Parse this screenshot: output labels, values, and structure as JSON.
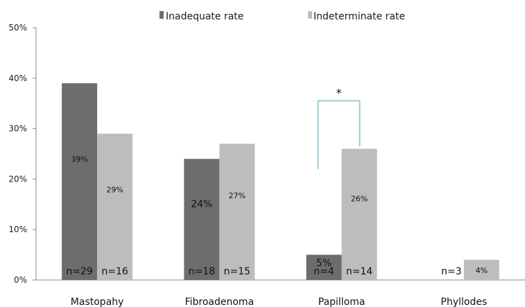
{
  "chart_data": {
    "type": "bar",
    "categories": [
      "Mastopahy",
      "Fibroadenoma",
      "Papilloma",
      "Phyllodes"
    ],
    "series": [
      {
        "name": "Inadequate rate",
        "values": [
          39,
          24,
          5,
          0
        ],
        "color": "#6d6d6d",
        "data_labels": [
          "39%",
          "24%",
          "5%",
          ""
        ],
        "n_labels": [
          "n=29",
          "n=18",
          "n=4",
          "n=3"
        ]
      },
      {
        "name": "Indeterminate rate",
        "values": [
          29,
          27,
          26,
          4
        ],
        "color": "#bdbdbd",
        "data_labels": [
          "29%",
          "27%",
          "26%",
          "4%"
        ],
        "n_labels": [
          "n=16",
          "n=15",
          "n=14",
          ""
        ]
      }
    ],
    "ylim": [
      0,
      50
    ],
    "yticks": [
      "0%",
      "10%",
      "20%",
      "30%",
      "40%",
      "50%"
    ],
    "xlabel": "",
    "ylabel": "",
    "title": "",
    "legend": "top-center",
    "annotation": {
      "category": "Papilloma",
      "text": "*"
    },
    "bracket_color": "#9fc9d0"
  }
}
